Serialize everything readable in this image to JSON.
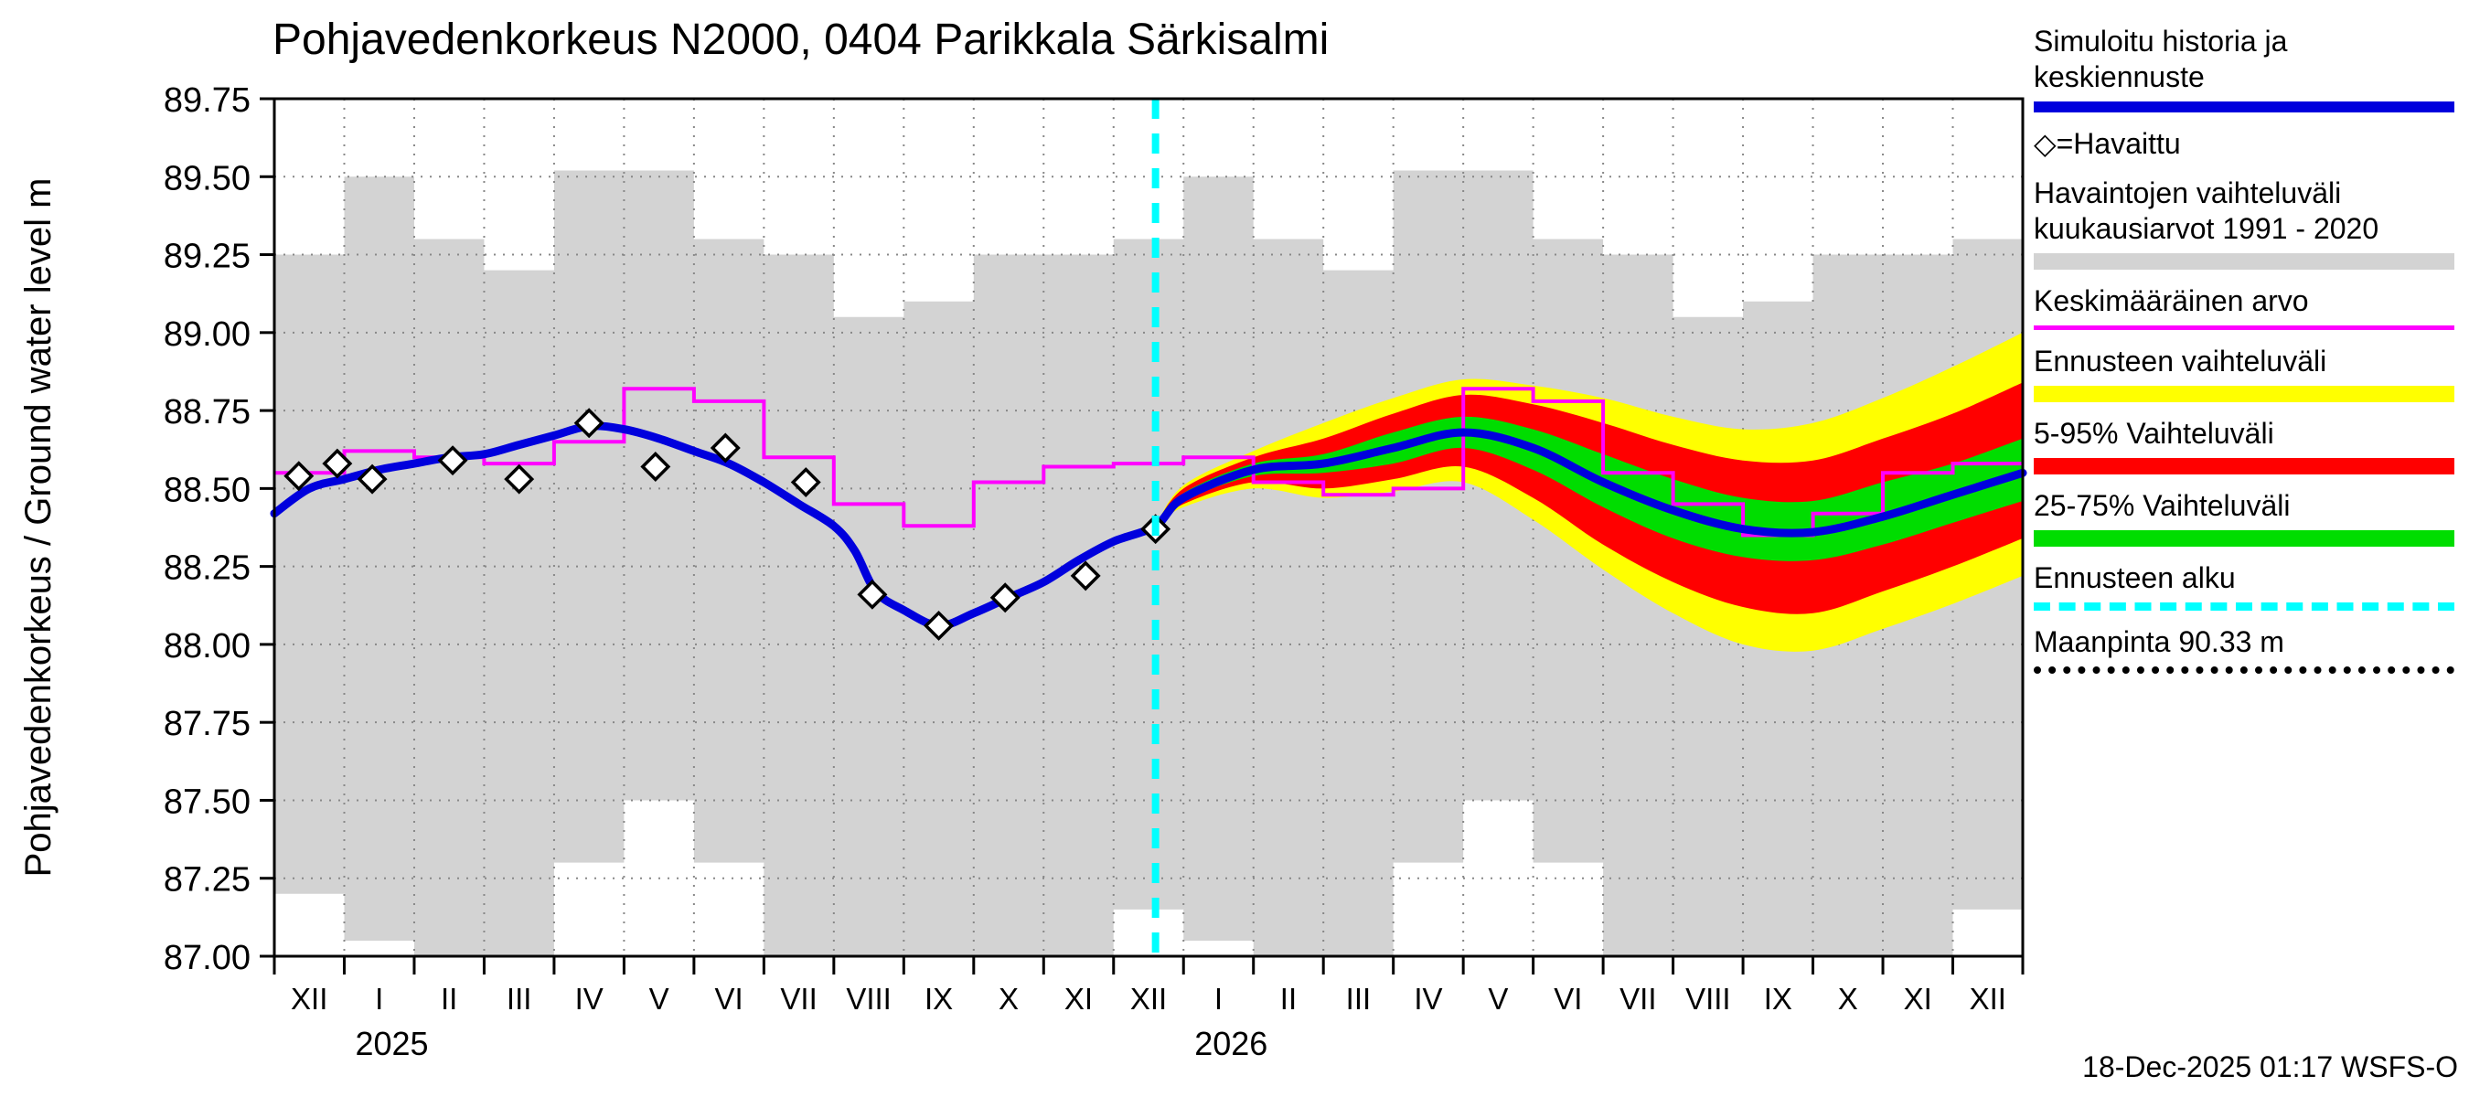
{
  "timestamp": "18-Dec-2025 01:17 WSFS-O",
  "chart_data": {
    "type": "line",
    "title": "Pohjavedenkorkeus N2000, 0404 Parikkala Särkisalmi",
    "ylabel": "Pohjavedenkorkeus / Ground water level  m",
    "ylim": [
      87.0,
      89.75
    ],
    "y_ticks": [
      87.0,
      87.25,
      87.5,
      87.75,
      88.0,
      88.25,
      88.5,
      88.75,
      89.0,
      89.25,
      89.5,
      89.75
    ],
    "grid": true,
    "x_month_labels": [
      "XII",
      "I",
      "II",
      "III",
      "IV",
      "V",
      "VI",
      "VII",
      "VIII",
      "IX",
      "X",
      "XI",
      "XII",
      "I",
      "II",
      "III",
      "IV",
      "V",
      "VI",
      "VII",
      "VIII",
      "IX",
      "X",
      "XI",
      "XII"
    ],
    "x_years": [
      {
        "label": "2025",
        "at_month": 1
      },
      {
        "label": "2026",
        "at_month": 13
      }
    ],
    "forecast_start_month": 12.6,
    "ground_level_m": 90.33,
    "colors": {
      "simulated": "#0000dd",
      "observed_range": "#d3d3d3",
      "mean": "#ff00ff",
      "forecast_total": "#ffff00",
      "forecast_5_95": "#ff0000",
      "forecast_25_75": "#00dd00",
      "forecast_start": "#00ffff",
      "grid": "#888888"
    },
    "observed_range_1991_2020": {
      "monthly_max": [
        89.25,
        89.5,
        89.3,
        89.2,
        89.52,
        89.52,
        89.3,
        89.25,
        89.05,
        89.1,
        89.25,
        89.25,
        89.3,
        89.5,
        89.3,
        89.2,
        89.52,
        89.52,
        89.3,
        89.25,
        89.05,
        89.1,
        89.25,
        89.25,
        89.3
      ],
      "monthly_min": [
        87.2,
        87.05,
        87.0,
        87.0,
        87.3,
        87.5,
        87.3,
        87.0,
        87.0,
        87.0,
        87.0,
        87.0,
        87.15,
        87.05,
        87.0,
        87.0,
        87.3,
        87.5,
        87.3,
        87.0,
        87.0,
        87.0,
        87.0,
        87.0,
        87.15
      ]
    },
    "monthly_mean": [
      88.55,
      88.62,
      88.6,
      88.58,
      88.65,
      88.82,
      88.78,
      88.6,
      88.45,
      88.38,
      88.52,
      88.57,
      88.58,
      88.6,
      88.52,
      88.48,
      88.5,
      88.82,
      88.78,
      88.55,
      88.45,
      88.35,
      88.42,
      88.55,
      88.58
    ],
    "simulated_and_median_forecast": {
      "x": [
        0,
        0.5,
        1,
        1.5,
        2,
        2.5,
        3,
        3.5,
        4,
        4.5,
        5,
        5.5,
        6,
        6.5,
        7,
        7.5,
        8,
        8.3,
        8.6,
        9,
        9.5,
        10,
        10.5,
        11,
        11.5,
        12,
        12.6,
        13,
        14,
        15,
        16,
        17,
        18,
        19,
        20,
        21,
        22,
        23,
        24,
        25
      ],
      "y": [
        88.42,
        88.5,
        88.53,
        88.56,
        88.58,
        88.6,
        88.61,
        88.64,
        88.67,
        88.7,
        88.69,
        88.66,
        88.62,
        88.58,
        88.52,
        88.45,
        88.38,
        88.3,
        88.17,
        88.11,
        88.06,
        88.1,
        88.15,
        88.2,
        88.27,
        88.33,
        88.38,
        88.47,
        88.56,
        88.58,
        88.63,
        88.68,
        88.63,
        88.52,
        88.43,
        88.37,
        88.36,
        88.41,
        88.48,
        88.55
      ]
    },
    "observations": {
      "x": [
        0.35,
        0.9,
        1.4,
        2.55,
        3.5,
        4.5,
        5.45,
        6.45,
        7.6,
        8.55,
        9.5,
        10.45,
        11.6,
        12.6
      ],
      "y": [
        88.54,
        88.58,
        88.53,
        88.59,
        88.53,
        88.71,
        88.57,
        88.63,
        88.52,
        88.16,
        88.06,
        88.15,
        88.22,
        88.37
      ]
    },
    "forecast_bands": {
      "x": [
        12.6,
        13,
        14,
        15,
        16,
        17,
        18,
        19,
        20,
        21,
        22,
        23,
        24,
        25
      ],
      "total_max": [
        88.38,
        88.51,
        88.62,
        88.71,
        88.79,
        88.85,
        88.83,
        88.79,
        88.73,
        88.69,
        88.71,
        88.79,
        88.89,
        89.0
      ],
      "p95": [
        88.38,
        88.5,
        88.6,
        88.66,
        88.74,
        88.8,
        88.77,
        88.71,
        88.64,
        88.59,
        88.59,
        88.66,
        88.74,
        88.84
      ],
      "p75": [
        88.38,
        88.485,
        88.58,
        88.61,
        88.68,
        88.73,
        88.69,
        88.61,
        88.53,
        88.47,
        88.46,
        88.52,
        88.58,
        88.66
      ],
      "p25": [
        88.38,
        88.46,
        88.54,
        88.55,
        88.58,
        88.63,
        88.56,
        88.44,
        88.34,
        88.28,
        88.27,
        88.32,
        88.39,
        88.46
      ],
      "p5": [
        88.38,
        88.45,
        88.52,
        88.5,
        88.53,
        88.57,
        88.47,
        88.32,
        88.2,
        88.12,
        88.1,
        88.17,
        88.25,
        88.34
      ],
      "total_min": [
        88.38,
        88.44,
        88.5,
        88.47,
        88.49,
        88.52,
        88.4,
        88.24,
        88.1,
        88.0,
        87.98,
        88.05,
        88.13,
        88.22
      ]
    }
  },
  "legend": {
    "items": [
      {
        "name": "legend-simulated-history",
        "lines": [
          "Simuloitu historia ja",
          "keskiennuste"
        ],
        "sample": {
          "kind": "thickline",
          "color": "#0000dd"
        }
      },
      {
        "name": "legend-observed",
        "lines": [
          "◇=Havaittu"
        ],
        "sample": null
      },
      {
        "name": "legend-observed-range",
        "lines": [
          "Havaintojen vaihteluväli",
          "kuukausiarvot 1991 - 2020"
        ],
        "sample": {
          "kind": "bar",
          "color": "#d3d3d3"
        }
      },
      {
        "name": "legend-mean-value",
        "lines": [
          "Keskimääräinen arvo"
        ],
        "sample": {
          "kind": "thinline",
          "color": "#ff00ff"
        }
      },
      {
        "name": "legend-forecast-range",
        "lines": [
          "Ennusteen vaihteluväli"
        ],
        "sample": {
          "kind": "bar",
          "color": "#ffff00"
        }
      },
      {
        "name": "legend-range-5-95",
        "lines": [
          "5-95% Vaihteluväli"
        ],
        "sample": {
          "kind": "bar",
          "color": "#ff0000"
        }
      },
      {
        "name": "legend-range-25-75",
        "lines": [
          "25-75% Vaihteluväli"
        ],
        "sample": {
          "kind": "bar",
          "color": "#00dd00"
        }
      },
      {
        "name": "legend-forecast-start",
        "lines": [
          "Ennusteen alku"
        ],
        "sample": {
          "kind": "dashed",
          "color": "#00ffff"
        }
      },
      {
        "name": "legend-ground-level",
        "lines": [
          "Maanpinta 90.33 m"
        ],
        "sample": {
          "kind": "dotted",
          "color": "#000000"
        }
      }
    ]
  }
}
